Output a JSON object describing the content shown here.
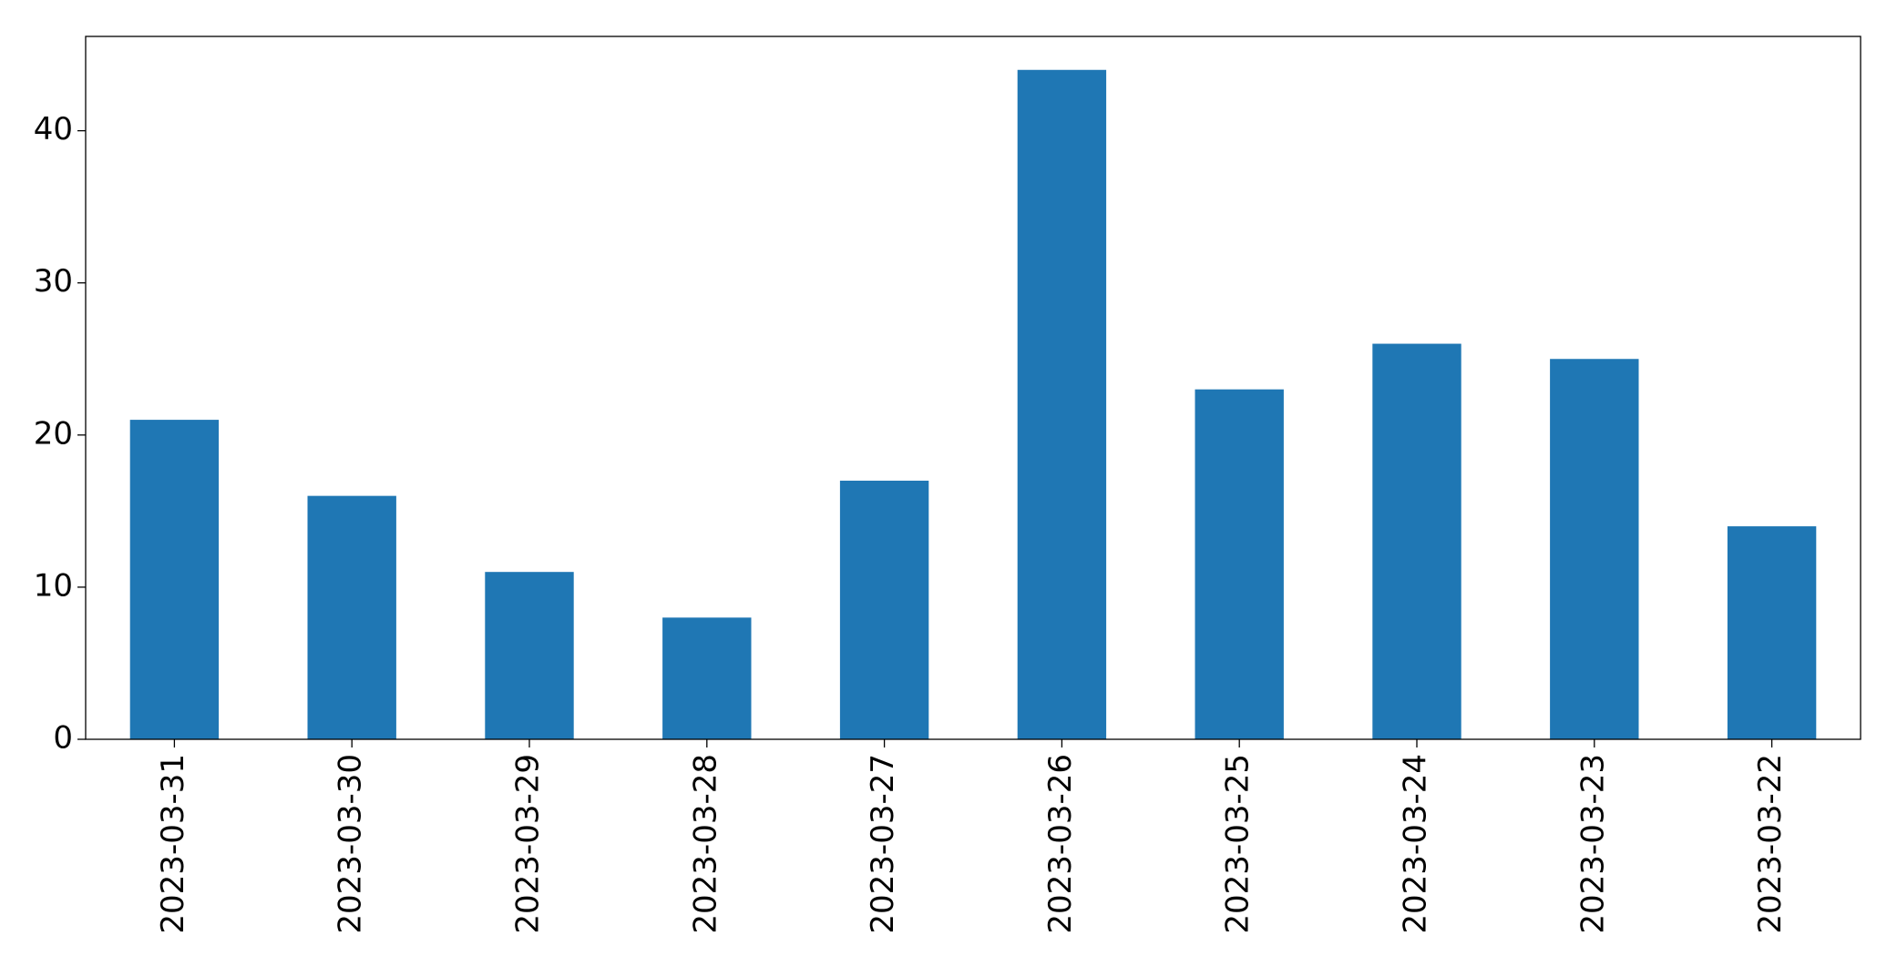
{
  "chart_data": {
    "type": "bar",
    "categories": [
      "2023-03-31",
      "2023-03-30",
      "2023-03-29",
      "2023-03-28",
      "2023-03-27",
      "2023-03-26",
      "2023-03-25",
      "2023-03-24",
      "2023-03-23",
      "2023-03-22"
    ],
    "values": [
      21,
      16,
      11,
      8,
      17,
      44,
      23,
      26,
      25,
      14
    ],
    "color": "#1f77b4",
    "ylim": [
      0,
      46.2
    ],
    "yticks": [
      0,
      10,
      20,
      30,
      40
    ],
    "grid": false
  }
}
